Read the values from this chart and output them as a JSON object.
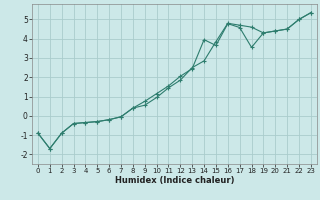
{
  "xlabel": "Humidex (Indice chaleur)",
  "background_color": "#cce8e8",
  "grid_color": "#aacccc",
  "line_color": "#2e7d6e",
  "xlim": [
    -0.5,
    23.5
  ],
  "ylim": [
    -2.5,
    5.8
  ],
  "yticks": [
    -2,
    -1,
    0,
    1,
    2,
    3,
    4,
    5
  ],
  "xticks": [
    0,
    1,
    2,
    3,
    4,
    5,
    6,
    7,
    8,
    9,
    10,
    11,
    12,
    13,
    14,
    15,
    16,
    17,
    18,
    19,
    20,
    21,
    22,
    23
  ],
  "line1_x": [
    0,
    1,
    2,
    3,
    4,
    5,
    6,
    7,
    8,
    9,
    10,
    11,
    12,
    13,
    14,
    15,
    16,
    17,
    18,
    19,
    20,
    21,
    22,
    23
  ],
  "line1_y": [
    -0.9,
    -1.7,
    -0.9,
    -0.4,
    -0.35,
    -0.3,
    -0.2,
    -0.05,
    0.4,
    0.55,
    0.95,
    1.45,
    1.85,
    2.5,
    2.85,
    3.85,
    4.8,
    4.7,
    4.6,
    4.3,
    4.4,
    4.5,
    5.0,
    5.35
  ],
  "line2_x": [
    0,
    1,
    2,
    3,
    4,
    5,
    6,
    7,
    8,
    9,
    10,
    11,
    12,
    13,
    14,
    15,
    16,
    17,
    18,
    19,
    20,
    21,
    22,
    23
  ],
  "line2_y": [
    -0.9,
    -1.7,
    -0.9,
    -0.4,
    -0.35,
    -0.3,
    -0.2,
    -0.05,
    0.4,
    0.75,
    1.15,
    1.55,
    2.05,
    2.45,
    3.95,
    3.65,
    4.78,
    4.58,
    3.55,
    4.3,
    4.4,
    4.5,
    5.0,
    5.35
  ],
  "xlabel_fontsize": 6.0,
  "tick_fontsize": 5.0
}
